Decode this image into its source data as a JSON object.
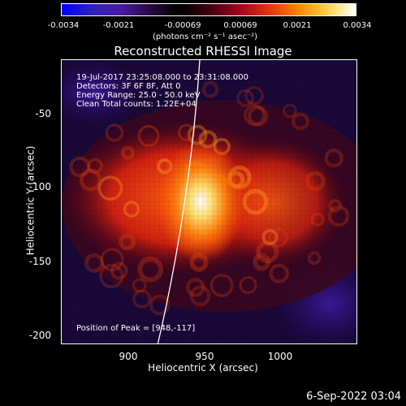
{
  "colorbar": {
    "ticks": [
      "-0.0034",
      "-0.0021",
      "-0.00069",
      "0.00069",
      "0.0021",
      "0.0034"
    ],
    "unit": "(photons cm⁻² s⁻¹ asec⁻²)",
    "colors": [
      "#0000ff",
      "#3020c0",
      "#4a1aa0",
      "#2a0a40",
      "#000000",
      "#400010",
      "#a00020",
      "#e03010",
      "#ff8000",
      "#ffd040",
      "#ffffff"
    ]
  },
  "title": "Reconstructed RHESSI Image",
  "annotations": {
    "time_range": "19-Jul-2017 23:25:08.000 to 23:31:08.000",
    "detectors": "Detectors: 3F 6F 8F, Att 0",
    "energy": "Energy Range: 25.0 - 50.0 keV",
    "clean": "Clean    Total counts: 1.22E+04",
    "peak": "Position of Peak = [948,-117]"
  },
  "axes": {
    "xlabel": "Heliocentric X (arcsec)",
    "ylabel": "Heliocentric Y (arcsec)",
    "xticks": [
      "900",
      "950",
      "1000"
    ],
    "yticks": [
      "-50",
      "-100",
      "-150",
      "-200"
    ],
    "xlim": [
      862,
      1045
    ],
    "ylim": [
      -205,
      -30
    ]
  },
  "peak": {
    "x": 948,
    "y": -117
  },
  "timestamp": "6-Sep-2022 03:04"
}
